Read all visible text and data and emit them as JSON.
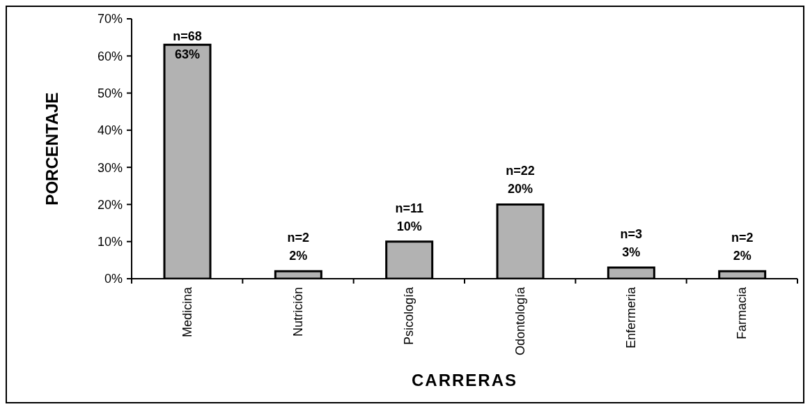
{
  "chart_data": {
    "type": "bar",
    "xlabel": "CARRERAS",
    "ylabel": "PORCENTAJE",
    "categories": [
      "Medicina",
      "Nutrición",
      "Psicología",
      "Odontología",
      "Enfermeria",
      "Farmacia"
    ],
    "values": [
      63,
      2,
      10,
      20,
      3,
      2
    ],
    "color": "#b2b2b2",
    "value_labels": [
      "n=68\n63%",
      "n=2\n2%",
      "n=11\n10%",
      "n=22\n20%",
      "n=3\n3%",
      "n=2\n2%"
    ],
    "ylim": [
      0,
      70
    ],
    "yticks": [
      {
        "value": 0,
        "label": "0%"
      },
      {
        "value": 10,
        "label": "10%"
      },
      {
        "value": 20,
        "label": "20%"
      },
      {
        "value": 30,
        "label": "30%"
      },
      {
        "value": 40,
        "label": "40%"
      },
      {
        "value": 50,
        "label": "50%"
      },
      {
        "value": 60,
        "label": "60%"
      },
      {
        "value": 70,
        "label": "70%"
      }
    ]
  }
}
